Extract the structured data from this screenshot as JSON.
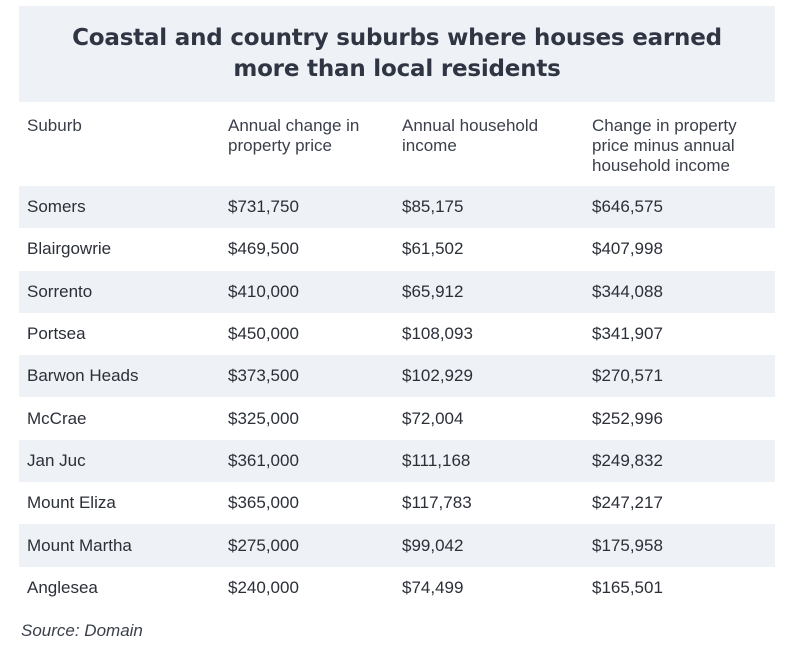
{
  "title": "Coastal and country suburbs where houses earned more than local residents",
  "columns": [
    "Suburb",
    "Annual change in property price",
    "Annual household income",
    "Change in property price minus annual household income"
  ],
  "rows": [
    {
      "suburb": "Somers",
      "price_change": "$731,750",
      "income": "$85,175",
      "difference": "$646,575"
    },
    {
      "suburb": "Blairgowrie",
      "price_change": "$469,500",
      "income": "$61,502",
      "difference": "$407,998"
    },
    {
      "suburb": "Sorrento",
      "price_change": "$410,000",
      "income": "$65,912",
      "difference": "$344,088"
    },
    {
      "suburb": "Portsea",
      "price_change": "$450,000",
      "income": "$108,093",
      "difference": "$341,907"
    },
    {
      "suburb": "Barwon Heads",
      "price_change": "$373,500",
      "income": "$102,929",
      "difference": "$270,571"
    },
    {
      "suburb": "McCrae",
      "price_change": "$325,000",
      "income": "$72,004",
      "difference": "$252,996"
    },
    {
      "suburb": "Jan Juc",
      "price_change": "$361,000",
      "income": "$111,168",
      "difference": "$249,832"
    },
    {
      "suburb": "Mount Eliza",
      "price_change": "$365,000",
      "income": "$117,783",
      "difference": "$247,217"
    },
    {
      "suburb": "Mount Martha",
      "price_change": "$275,000",
      "income": "$99,042",
      "difference": "$175,958"
    },
    {
      "suburb": "Anglesea",
      "price_change": "$240,000",
      "income": "$74,499",
      "difference": "$165,501"
    }
  ],
  "source": "Source: Domain"
}
